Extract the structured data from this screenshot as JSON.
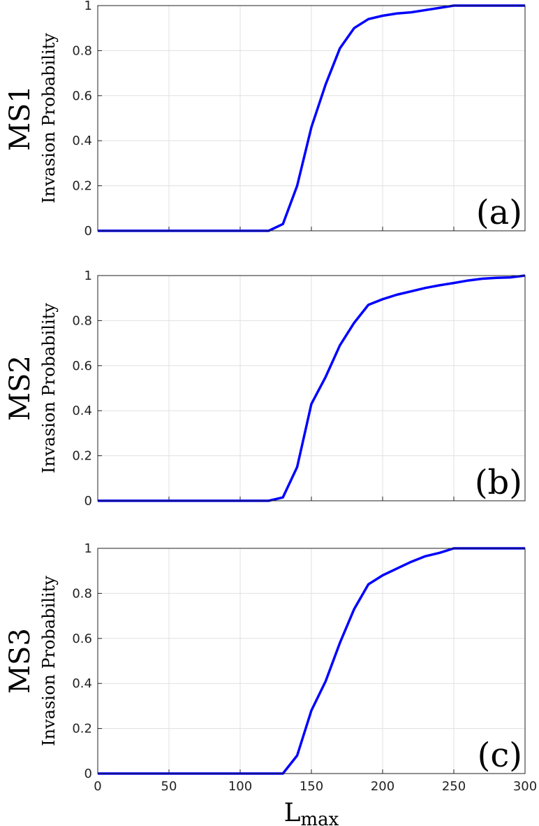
{
  "chart_data": [
    {
      "type": "line",
      "ylabel": "Invasion Probability",
      "row_label": "MS1",
      "panel_label": "(a)",
      "x": [
        0,
        10,
        20,
        30,
        40,
        50,
        60,
        70,
        80,
        90,
        100,
        110,
        120,
        130,
        140,
        150,
        160,
        170,
        180,
        190,
        200,
        210,
        220,
        230,
        240,
        250,
        260,
        270,
        280,
        290,
        300
      ],
      "series": [
        {
          "color": "#0000ff",
          "values": [
            0,
            0,
            0,
            0,
            0,
            0,
            0,
            0,
            0,
            0,
            0,
            0,
            0,
            0.03,
            0.2,
            0.46,
            0.65,
            0.81,
            0.9,
            0.94,
            0.955,
            0.965,
            0.97,
            0.98,
            0.99,
            1,
            1,
            1,
            1,
            1,
            1
          ]
        }
      ],
      "xlim": [
        0,
        300
      ],
      "xticks": [
        0,
        50,
        100,
        150,
        200,
        250,
        300
      ],
      "show_xtick_labels": false,
      "ylim": [
        0,
        1
      ],
      "yticks": [
        0,
        0.2,
        0.4,
        0.6,
        0.8,
        1
      ],
      "grid": true
    },
    {
      "type": "line",
      "ylabel": "Invasion Probability",
      "row_label": "MS2",
      "panel_label": "(b)",
      "x": [
        0,
        10,
        20,
        30,
        40,
        50,
        60,
        70,
        80,
        90,
        100,
        110,
        120,
        130,
        140,
        150,
        160,
        170,
        180,
        190,
        200,
        210,
        220,
        230,
        240,
        250,
        260,
        270,
        280,
        290,
        300
      ],
      "series": [
        {
          "color": "#0000ff",
          "values": [
            0,
            0,
            0,
            0,
            0,
            0,
            0,
            0,
            0,
            0,
            0,
            0,
            0,
            0.015,
            0.15,
            0.43,
            0.55,
            0.69,
            0.79,
            0.87,
            0.895,
            0.915,
            0.93,
            0.945,
            0.957,
            0.967,
            0.978,
            0.986,
            0.99,
            0.992,
            1
          ]
        }
      ],
      "xlim": [
        0,
        300
      ],
      "xticks": [
        0,
        50,
        100,
        150,
        200,
        250,
        300
      ],
      "show_xtick_labels": false,
      "ylim": [
        0,
        1
      ],
      "yticks": [
        0,
        0.2,
        0.4,
        0.6,
        0.8,
        1
      ],
      "grid": true
    },
    {
      "type": "line",
      "ylabel": "Invasion Probability",
      "row_label": "MS3",
      "panel_label": "(c)",
      "xlabel": "L",
      "xlabel_subscript": "max",
      "x": [
        0,
        10,
        20,
        30,
        40,
        50,
        60,
        70,
        80,
        90,
        100,
        110,
        120,
        130,
        140,
        150,
        160,
        170,
        180,
        190,
        200,
        210,
        220,
        230,
        240,
        250,
        260,
        270,
        280,
        290,
        300
      ],
      "series": [
        {
          "color": "#0000ff",
          "values": [
            0,
            0,
            0,
            0,
            0,
            0,
            0,
            0,
            0,
            0,
            0,
            0,
            0,
            0,
            0.08,
            0.28,
            0.41,
            0.58,
            0.73,
            0.84,
            0.88,
            0.91,
            0.94,
            0.965,
            0.98,
            1,
            1,
            1,
            1,
            1,
            1
          ]
        }
      ],
      "xlim": [
        0,
        300
      ],
      "xticks": [
        0,
        50,
        100,
        150,
        200,
        250,
        300
      ],
      "show_xtick_labels": true,
      "ylim": [
        0,
        1
      ],
      "yticks": [
        0,
        0.2,
        0.4,
        0.6,
        0.8,
        1
      ],
      "grid": true
    }
  ]
}
